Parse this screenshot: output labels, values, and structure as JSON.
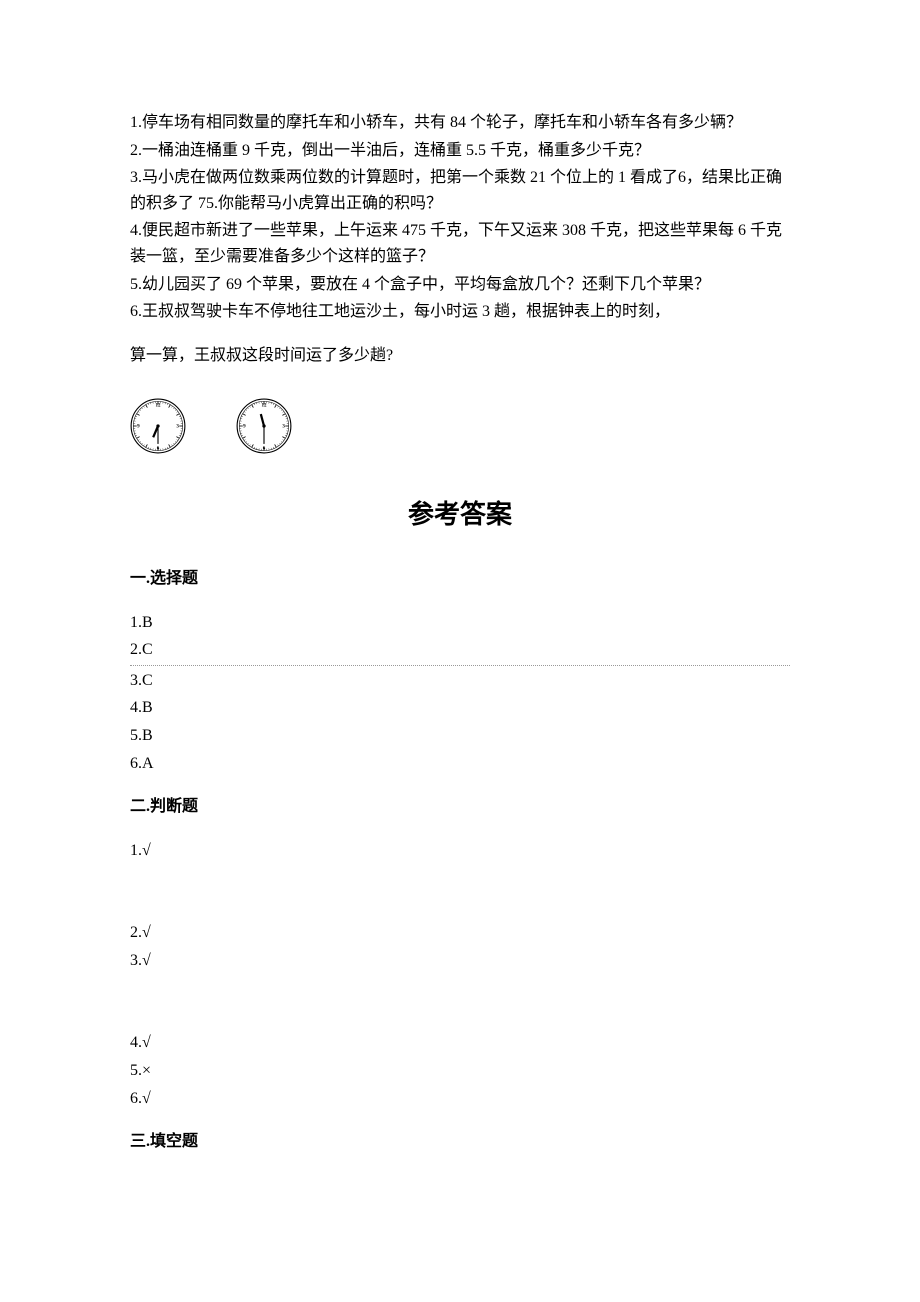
{
  "problems": {
    "p1": "1.停车场有相同数量的摩托车和小轿车，共有 84 个轮子，摩托车和小轿车各有多少辆？",
    "p2": "2.一桶油连桶重 9 千克，倒出一半油后，连桶重 5.5 千克，桶重多少千克？",
    "p3": "3.马小虎在做两位数乘两位数的计算题时，把第一个乘数 21 个位上的 1 看成了6，结果比正确的积多了 75.你能帮马小虎算出正确的积吗？",
    "p4": "4.便民超市新进了一些苹果，上午运来 475 千克，下午又运来 308 千克，把这些苹果每 6 千克装一篮，至少需要准备多少个这样的篮子？",
    "p5": "5.幼儿园买了 69 个苹果，要放在 4 个盒子中，平均每盒放几个？还剩下几个苹果？",
    "p6a": "6.王叔叔驾驶卡车不停地往工地运沙土，每小时运 3 趟，根据钟表上的时刻，",
    "p6b": "算一算，王叔叔这段时间运了多少趟?"
  },
  "clocks": {
    "clock1": {
      "hour_angle": 203,
      "minute_angle": 180
    },
    "clock2": {
      "hour_angle": 345,
      "minute_angle": 180
    }
  },
  "answers": {
    "title": "参考答案",
    "sections": {
      "choice": {
        "header": "一.选择题",
        "items": [
          "1.B",
          "2.C",
          "3.C",
          "4.B",
          "5.B",
          "6.A"
        ]
      },
      "judge": {
        "header": "二.判断题",
        "group1": [
          "1.√"
        ],
        "group2": [
          "2.√",
          "3.√"
        ],
        "group3": [
          "4.√",
          "5.×",
          "6.√"
        ]
      },
      "fill": {
        "header": "三.填空题"
      }
    }
  }
}
